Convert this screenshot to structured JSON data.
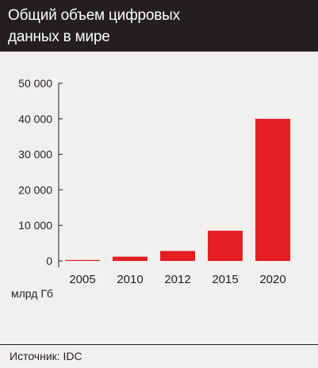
{
  "header": {
    "title_line1": "Общий объем цифровых",
    "title_line2": "данных в мире"
  },
  "unit_label": "млрд Гб",
  "source": "Источник: IDC",
  "colors": {
    "bar": "#e31e24",
    "header_bg": "#231f20",
    "background": "#f2f0ee"
  },
  "chart_data": {
    "type": "bar",
    "categories": [
      "2005",
      "2010",
      "2012",
      "2015",
      "2020"
    ],
    "values": [
      130,
      1200,
      2800,
      8500,
      40000
    ],
    "title": "Общий объем цифровых данных в мире",
    "ylabel": "млрд Гб",
    "ylim": [
      0,
      50000
    ],
    "yticks": [
      0,
      10000,
      20000,
      30000,
      40000,
      50000
    ],
    "ytick_labels": [
      "0",
      "10 000",
      "20 000",
      "30 000",
      "40 000",
      "50 000"
    ],
    "grid": false
  }
}
